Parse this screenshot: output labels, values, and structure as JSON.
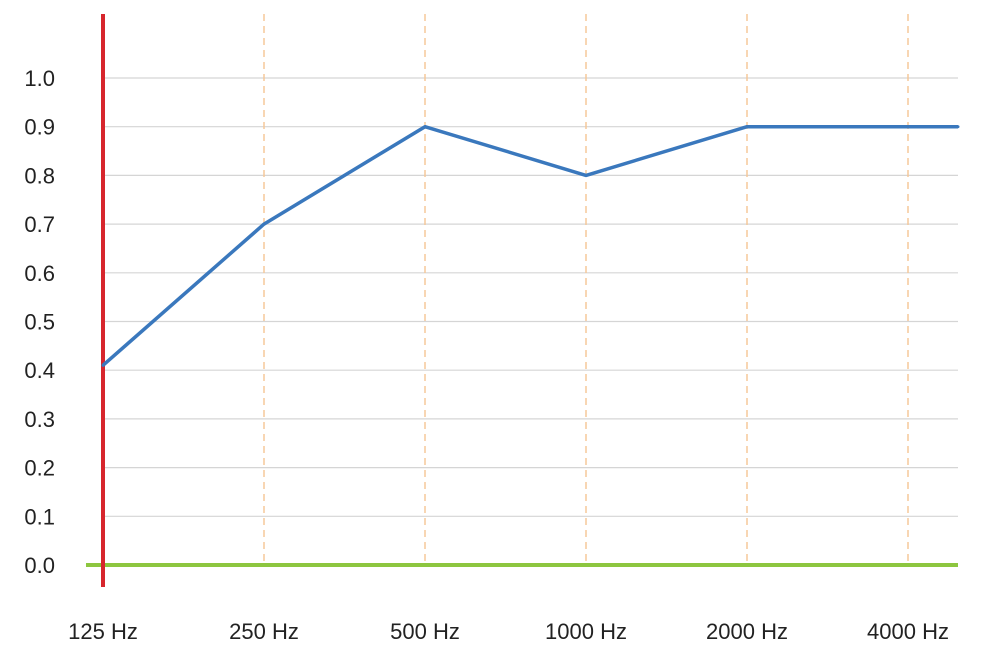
{
  "chart_data": {
    "type": "line",
    "title": "",
    "xlabel": "",
    "ylabel": "",
    "categories": [
      "125 Hz",
      "250 Hz",
      "500 Hz",
      "1000 Hz",
      "2000 Hz",
      "4000 Hz"
    ],
    "y_ticks": [
      "1.0",
      "0.9",
      "0.8",
      "0.7",
      "0.6",
      "0.5",
      "0.4",
      "0.3",
      "0.2",
      "0.1",
      "0.0"
    ],
    "ylim": [
      0,
      1.0
    ],
    "grid": true,
    "vertical_grid_style": "dashed",
    "series": [
      {
        "values": [
          0.41,
          0.7,
          0.9,
          0.8,
          0.9,
          0.9
        ]
      }
    ],
    "colors": {
      "series_line": "#3a78bd",
      "y_axis": "#d7262d",
      "x_axis": "#8dc63f",
      "horizontal_grid": "#d5d5d5",
      "vertical_grid": "#f5c89a",
      "text": "#222222"
    }
  }
}
